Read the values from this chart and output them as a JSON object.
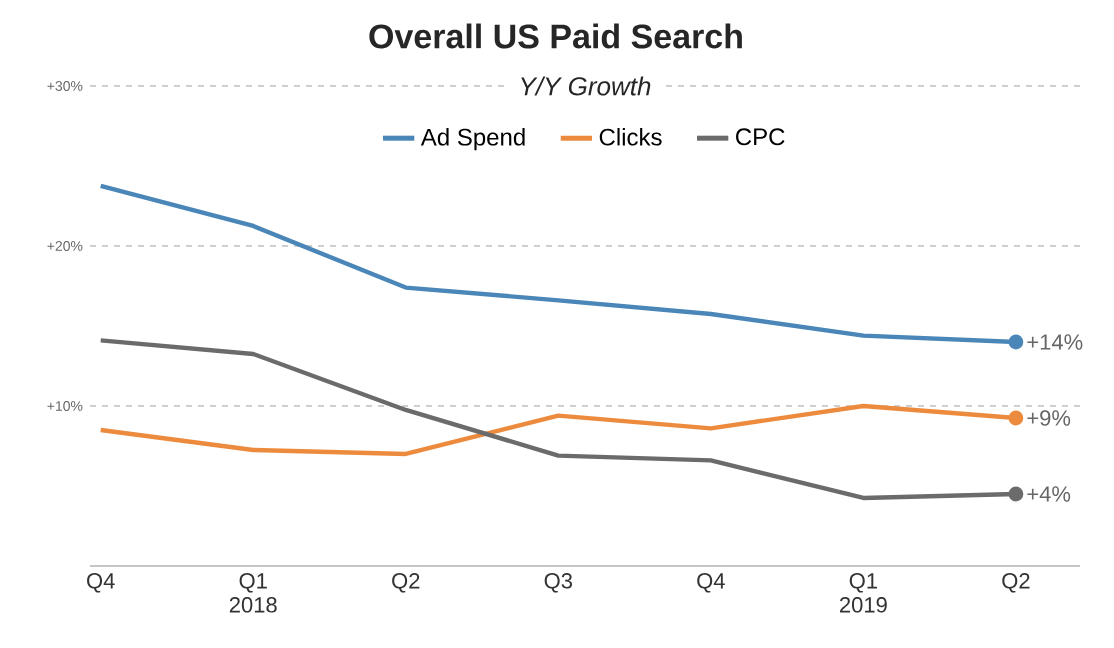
{
  "chart_data": {
    "type": "line",
    "title": "Overall US Paid Search",
    "subtitle": "Y/Y Growth",
    "categories": [
      "Q4",
      "Q1 2018",
      "Q2",
      "Q3",
      "Q4",
      "Q1 2019",
      "Q2"
    ],
    "series": [
      {
        "name": "Ad Spend",
        "color": "#4a86b8",
        "values": [
          23.75,
          21.25,
          17.4,
          16.6,
          15.75,
          14.4,
          14.0
        ],
        "value_labels": [
          null,
          null,
          null,
          null,
          null,
          null,
          "+14%"
        ]
      },
      {
        "name": "Clicks",
        "color": "#ec8b3e",
        "values": [
          8.5,
          7.25,
          7.0,
          9.4,
          8.6,
          10.0,
          9.25
        ],
        "value_labels": [
          null,
          null,
          null,
          null,
          null,
          null,
          "+9%"
        ]
      },
      {
        "name": "CPC",
        "color": "#6b6b6b",
        "values": [
          14.1,
          13.25,
          9.75,
          6.9,
          6.6,
          4.25,
          4.5
        ],
        "value_labels": [
          null,
          null,
          null,
          null,
          null,
          null,
          "+4%"
        ]
      }
    ],
    "ylim": [
      0,
      30
    ],
    "yticks": [
      {
        "value": 10,
        "label": "+10%"
      },
      {
        "value": 20,
        "label": "+20%"
      },
      {
        "value": 30,
        "label": "+30%"
      }
    ],
    "grid": "y",
    "legend": "top"
  }
}
